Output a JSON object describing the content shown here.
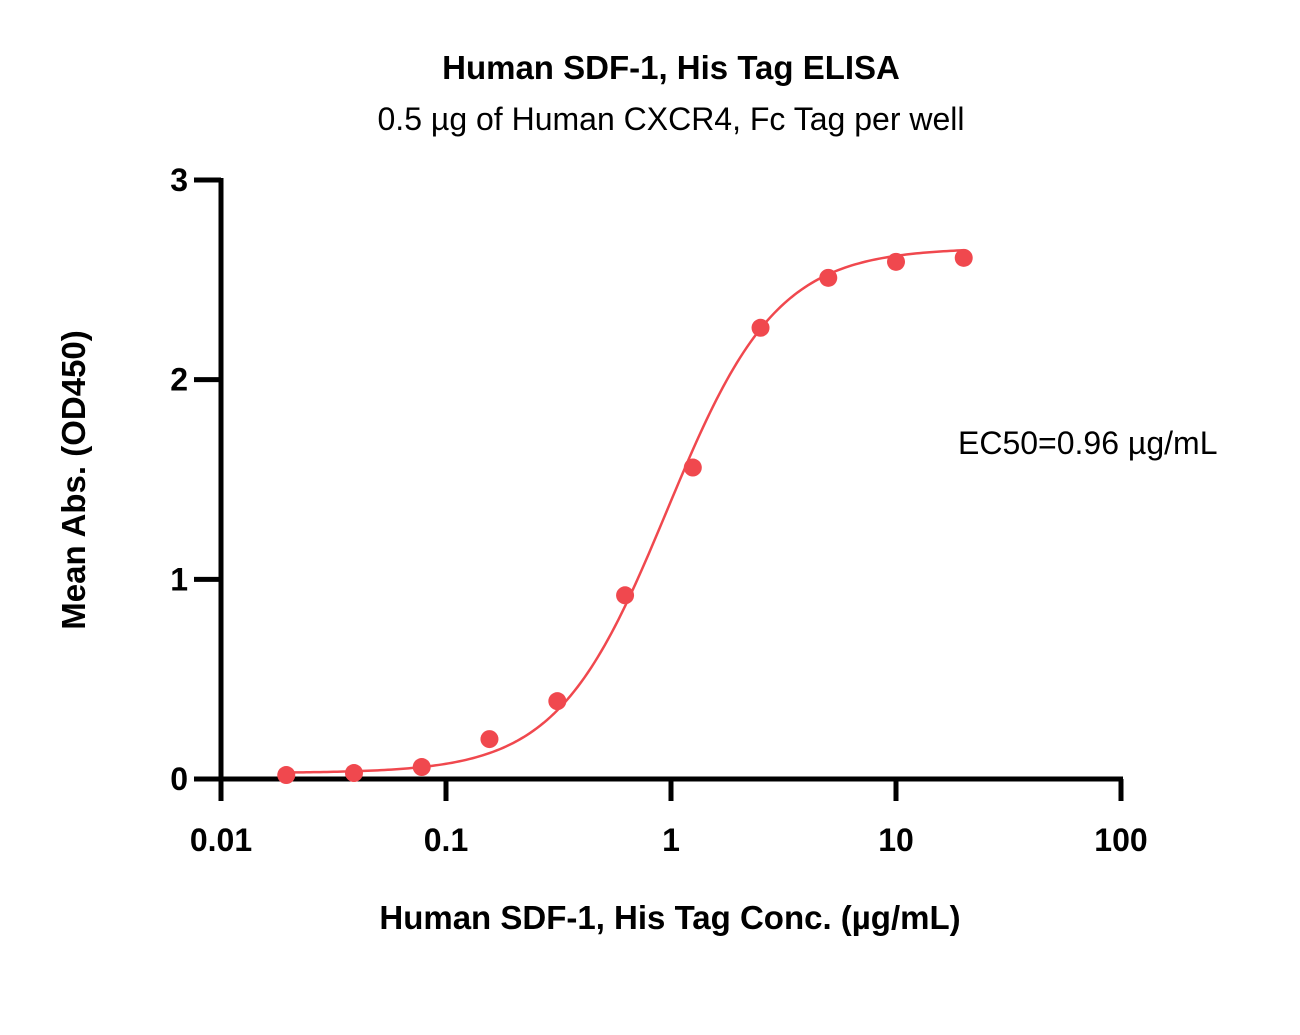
{
  "chart_data": {
    "type": "scatter",
    "title": "Human SDF-1, His Tag ELISA",
    "subtitle": "0.5 µg of Human CXCR4, Fc Tag per well",
    "xlabel": "Human SDF-1, His Tag Conc. (µg/mL)",
    "ylabel": "Mean Abs. (OD450)",
    "x_scale": "log",
    "xlim": [
      0.01,
      100
    ],
    "ylim": [
      0,
      3
    ],
    "x_ticks": [
      {
        "value": 0.01,
        "label": "0.01"
      },
      {
        "value": 0.1,
        "label": "0.1"
      },
      {
        "value": 1,
        "label": "1"
      },
      {
        "value": 10,
        "label": "10"
      },
      {
        "value": 100,
        "label": "100"
      }
    ],
    "y_ticks": [
      {
        "value": 0,
        "label": "0"
      },
      {
        "value": 1,
        "label": "1"
      },
      {
        "value": 2,
        "label": "2"
      },
      {
        "value": 3,
        "label": "3"
      }
    ],
    "grid": false,
    "series": [
      {
        "x": [
          0.0195,
          0.039,
          0.078,
          0.156,
          0.3125,
          0.625,
          1.25,
          2.5,
          5,
          10,
          20
        ],
        "y": [
          0.02,
          0.03,
          0.06,
          0.2,
          0.39,
          0.92,
          1.56,
          2.26,
          2.51,
          2.59,
          2.61
        ],
        "color": "#f0484e",
        "fit": "4PL"
      }
    ],
    "fit_params": {
      "bottom": 0.03,
      "top": 2.66,
      "ec50": 0.96,
      "hill": 1.78
    },
    "annotation": "EC50=0.96 µg/mL"
  }
}
